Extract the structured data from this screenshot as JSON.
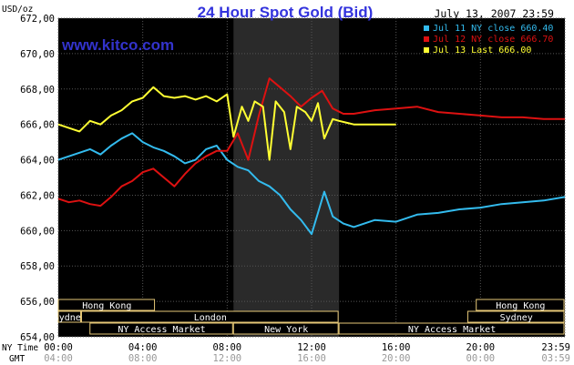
{
  "chart_data": {
    "type": "line",
    "title": "24 Hour Spot Gold (Bid)",
    "watermark": "www.kitco.com",
    "timestamp": "July 13, 2007 23:59",
    "y_unit_label": "USD/oz",
    "ylim": [
      654,
      672
    ],
    "y_ticks": [
      "672,00",
      "670,00",
      "668,00",
      "666,00",
      "664,00",
      "662,00",
      "660,00",
      "658,00",
      "656,00",
      "654,00"
    ],
    "y_tick_values": [
      672,
      670,
      668,
      666,
      664,
      662,
      660,
      658,
      656,
      654
    ],
    "xlim": [
      0,
      24
    ],
    "x_tick_values": [
      0,
      4,
      8,
      12,
      16,
      20,
      24
    ],
    "ny_time_label": "NY Time",
    "gmt_label": "GMT",
    "ny_time_ticks": [
      "00:00",
      "04:00",
      "08:00",
      "12:00",
      "16:00",
      "20:00",
      "23:59"
    ],
    "gmt_ticks": [
      "04:00",
      "08:00",
      "12:00",
      "16:00",
      "20:00",
      "00:00",
      "03:59"
    ],
    "ny_session_hours": [
      8.3,
      13.3
    ],
    "sessions": [
      {
        "label": "Hong Kong",
        "start": 0,
        "end": 4.6,
        "row": 0
      },
      {
        "label": "Hong Kong",
        "start": 19.8,
        "end": 24,
        "row": 0
      },
      {
        "label": "Sydney",
        "start": 0,
        "end": 1.1,
        "row": 1
      },
      {
        "label": "London",
        "start": 1.1,
        "end": 13.3,
        "row": 1
      },
      {
        "label": "Sydney",
        "start": 19.4,
        "end": 24,
        "row": 1
      },
      {
        "label": "NY Access Market",
        "start": 1.5,
        "end": 8.3,
        "row": 2
      },
      {
        "label": "New York",
        "start": 8.3,
        "end": 13.3,
        "row": 2
      },
      {
        "label": "NY Access Market",
        "start": 13.3,
        "end": 24,
        "row": 2
      }
    ],
    "series": [
      {
        "name": "Jul 11 NY close 660.40",
        "color": "#33bbee",
        "x": [
          0,
          0.5,
          1,
          1.5,
          2,
          2.5,
          3,
          3.5,
          4,
          4.5,
          5,
          5.5,
          6,
          6.5,
          7,
          7.5,
          8,
          8.5,
          9,
          9.5,
          10,
          10.5,
          11,
          11.5,
          12,
          12.3,
          12.6,
          13,
          13.5,
          14,
          15,
          16,
          17,
          18,
          19,
          20,
          21,
          22,
          23,
          24
        ],
        "values": [
          664.0,
          664.2,
          664.4,
          664.6,
          664.3,
          664.8,
          665.2,
          665.5,
          665.0,
          664.7,
          664.5,
          664.2,
          663.8,
          664.0,
          664.6,
          664.8,
          664.0,
          663.6,
          663.4,
          662.8,
          662.5,
          662.0,
          661.2,
          660.6,
          659.8,
          661.0,
          662.2,
          660.8,
          660.4,
          660.2,
          660.6,
          660.5,
          660.9,
          661.0,
          661.2,
          661.3,
          661.5,
          661.6,
          661.7,
          661.9
        ]
      },
      {
        "name": "Jul 12 NY close 666.70",
        "color": "#dd1111",
        "x": [
          0,
          0.5,
          1,
          1.5,
          2,
          2.5,
          3,
          3.5,
          4,
          4.5,
          5,
          5.5,
          6,
          6.5,
          7,
          7.5,
          8,
          8.5,
          9,
          9.5,
          10,
          10.5,
          11,
          11.5,
          12,
          12.5,
          13,
          13.5,
          14,
          15,
          16,
          17,
          18,
          19,
          20,
          21,
          22,
          23,
          24
        ],
        "values": [
          661.8,
          661.6,
          661.7,
          661.5,
          661.4,
          661.9,
          662.5,
          662.8,
          663.3,
          663.5,
          663.0,
          662.5,
          663.2,
          663.8,
          664.2,
          664.5,
          664.5,
          665.5,
          664.0,
          666.5,
          668.6,
          668.1,
          667.6,
          667.0,
          667.5,
          667.9,
          666.9,
          666.6,
          666.6,
          666.8,
          666.9,
          667.0,
          666.7,
          666.6,
          666.5,
          666.4,
          666.4,
          666.3,
          666.3
        ]
      },
      {
        "name": "Jul 13 Last 666.00",
        "color": "#ffff33",
        "x": [
          0,
          0.5,
          1,
          1.5,
          2,
          2.5,
          3,
          3.5,
          4,
          4.5,
          5,
          5.5,
          6,
          6.5,
          7,
          7.5,
          8,
          8.3,
          8.7,
          9,
          9.3,
          9.7,
          10,
          10.3,
          10.7,
          11,
          11.3,
          11.7,
          12,
          12.3,
          12.6,
          13,
          13.3,
          14,
          15,
          16
        ],
        "values": [
          666.0,
          665.8,
          665.6,
          666.2,
          666.0,
          666.5,
          666.8,
          667.3,
          667.5,
          668.1,
          667.6,
          667.5,
          667.6,
          667.4,
          667.6,
          667.3,
          667.7,
          665.3,
          667.0,
          666.2,
          667.3,
          667.0,
          664.0,
          667.3,
          666.7,
          664.6,
          667.0,
          666.7,
          666.2,
          667.2,
          665.2,
          666.3,
          666.2,
          666.0,
          666.0,
          666.0
        ]
      }
    ],
    "legend_position": "top-right",
    "grid": true
  }
}
